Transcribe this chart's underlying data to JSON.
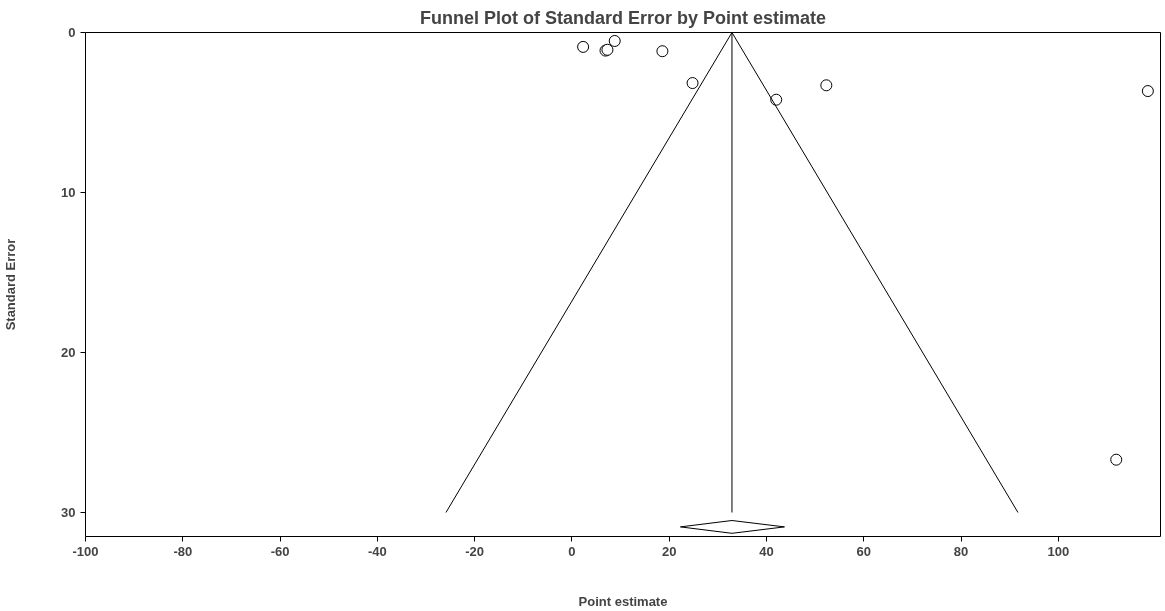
{
  "chart_data": {
    "type": "scatter",
    "title": "Funnel Plot of Standard Error by Point estimate",
    "xlabel": "Point estimate",
    "ylabel": "Standard Error",
    "xlim": [
      -100,
      121
    ],
    "ylim": [
      31.5,
      0
    ],
    "xticks": [
      -100,
      -80,
      -60,
      -40,
      -20,
      0,
      20,
      40,
      60,
      80,
      100
    ],
    "yticks": [
      0,
      10,
      20,
      30
    ],
    "grid": false,
    "marker": "circle",
    "series": [
      {
        "color": "#000000",
        "x": [
          2.3,
          6.9,
          7.3,
          8.8,
          18.6,
          24.8,
          42.0,
          52.3,
          118.4,
          111.9
        ],
        "values": [
          0.9,
          1.13,
          1.08,
          0.53,
          1.17,
          3.16,
          4.2,
          3.3,
          3.66,
          26.7
        ]
      },
      {
        "type": "line",
        "color": "#000000",
        "marker": "none",
        "x": [
          -25.9,
          32.9,
          91.7
        ],
        "values": [
          30,
          0,
          30
        ]
      },
      {
        "type": "line",
        "color": "#000000",
        "marker": "none",
        "x": [
          32.9,
          32.9
        ],
        "values": [
          0,
          30
        ]
      },
      {
        "type": "line",
        "color": "#000000",
        "marker": "none",
        "x": [
          22.3,
          32.9,
          43.7
        ],
        "values": [
          30.9,
          30.5,
          30.9
        ]
      },
      {
        "type": "line",
        "color": "#000000",
        "marker": "none",
        "x": [
          22.3,
          32.9,
          43.7
        ],
        "values": [
          30.9,
          31.3,
          30.9
        ]
      }
    ]
  }
}
